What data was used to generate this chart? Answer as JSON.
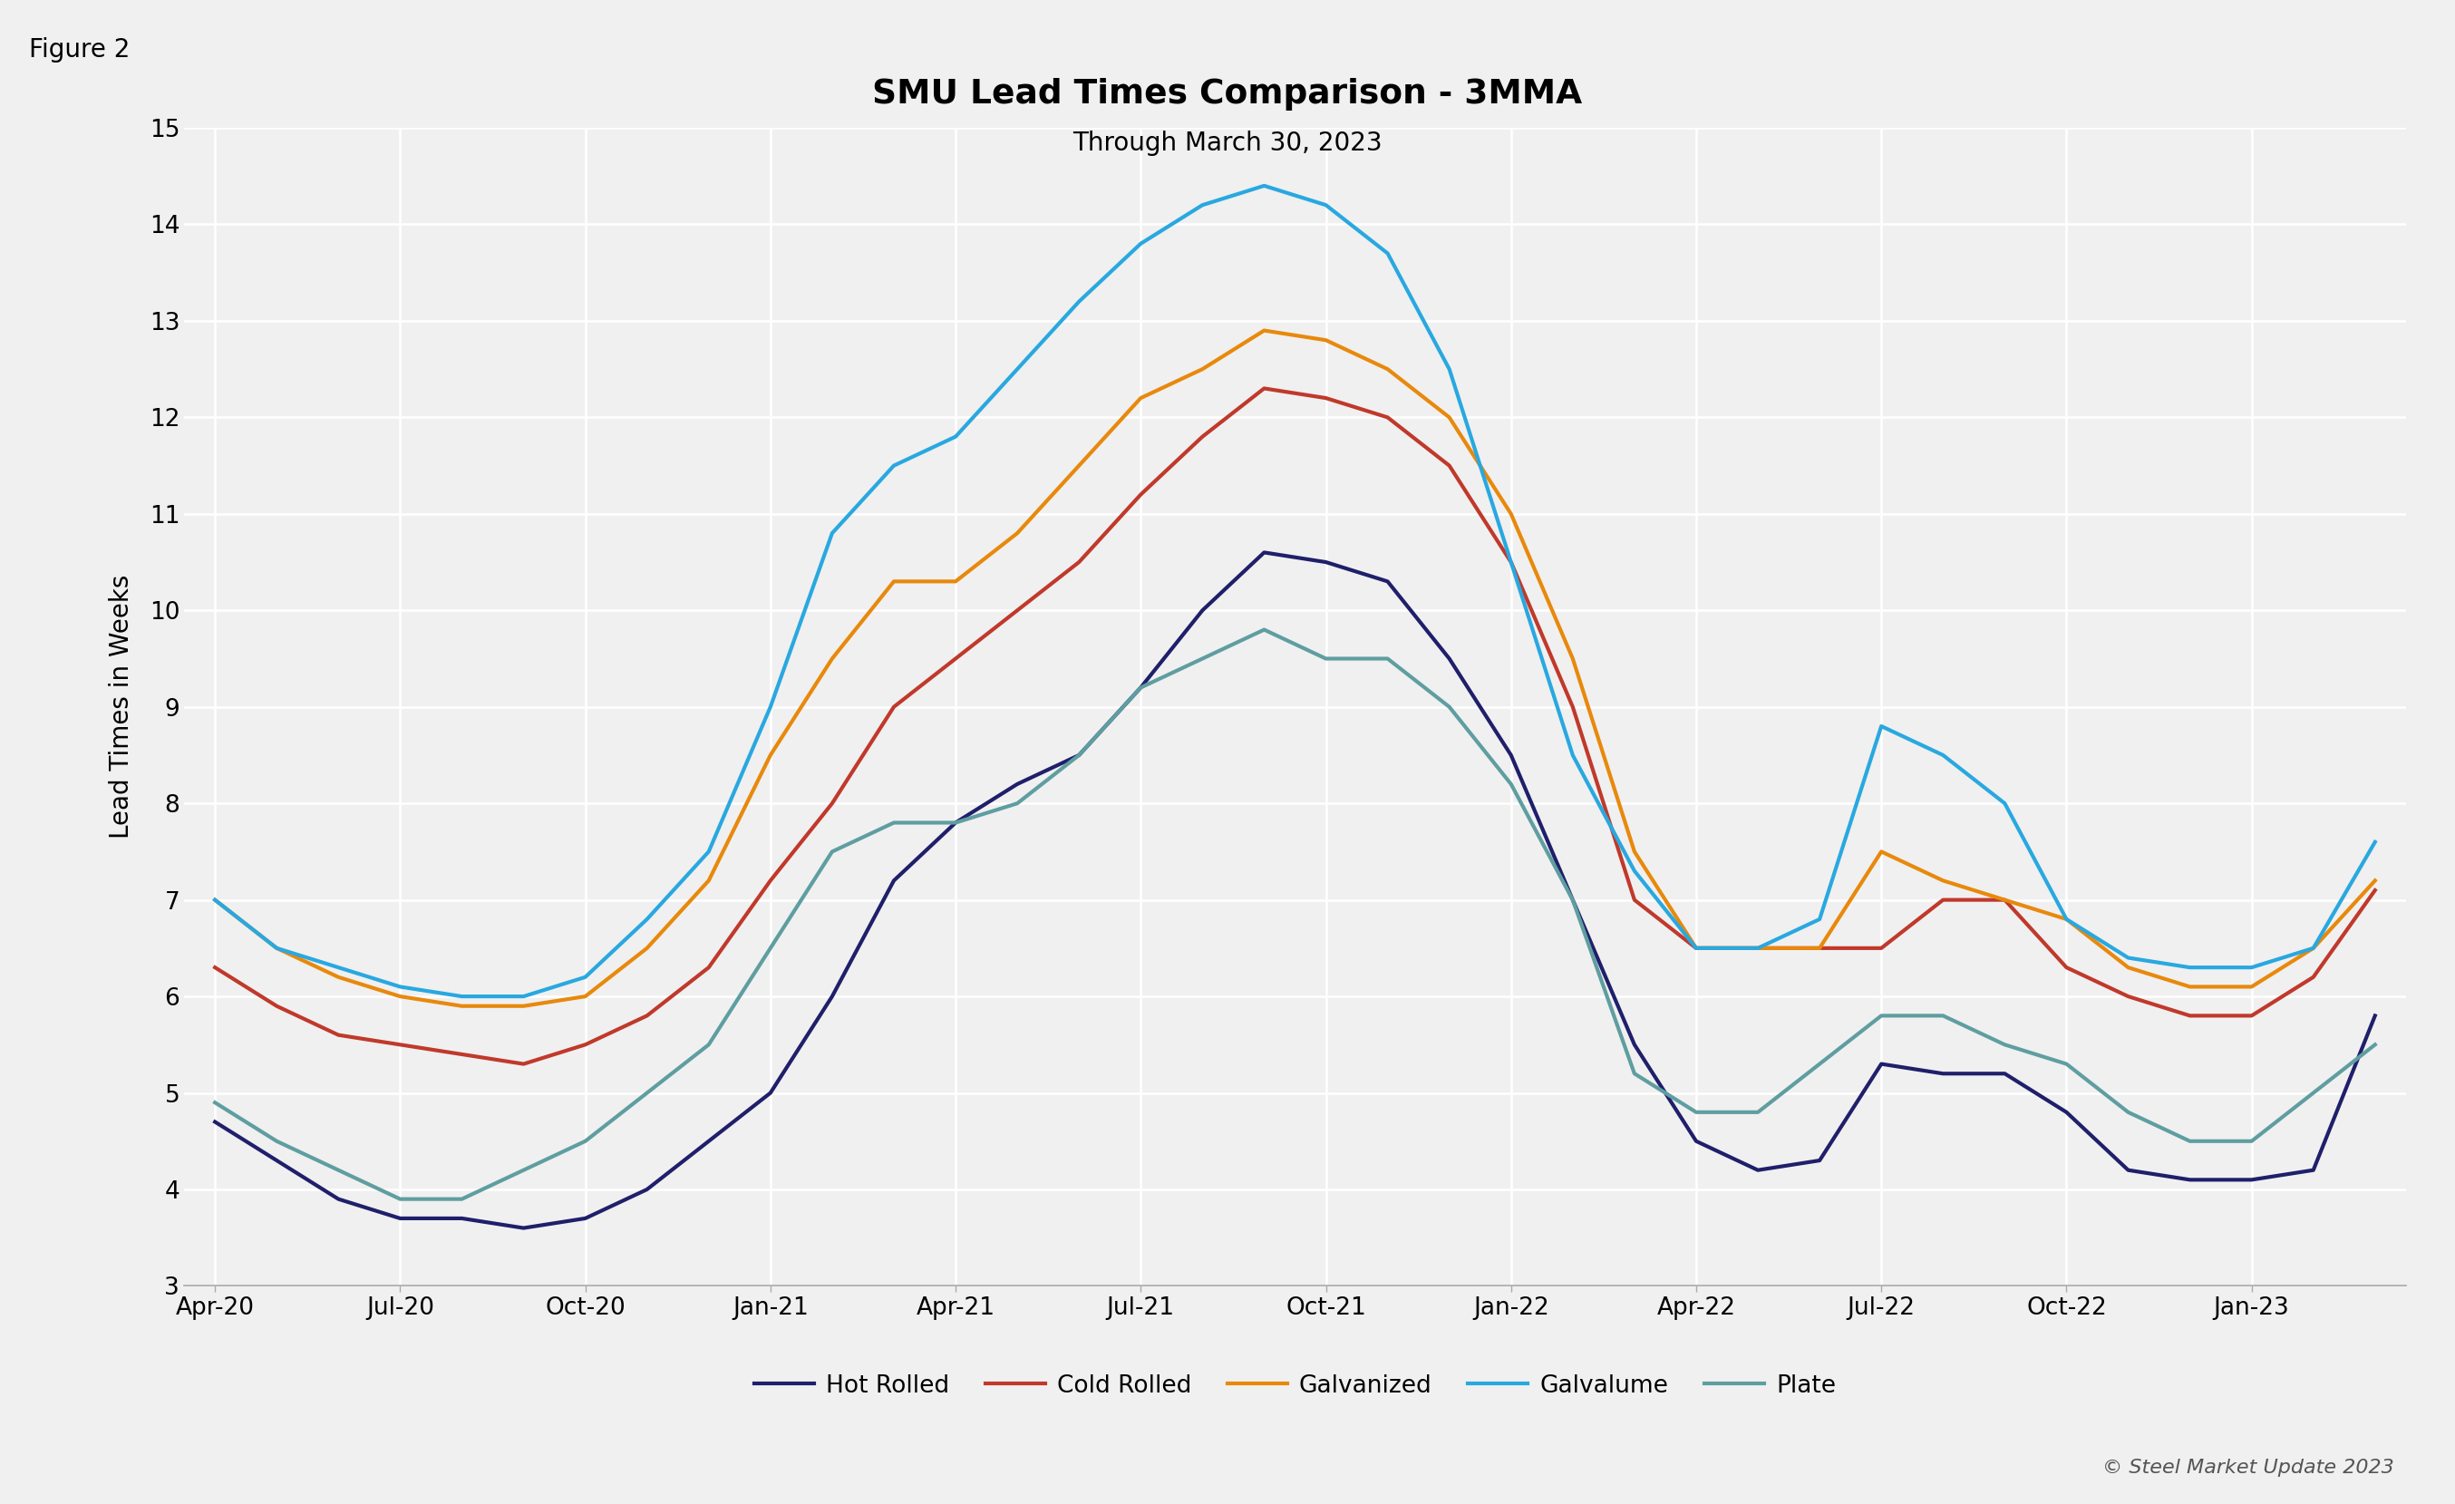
{
  "title": "SMU Lead Times Comparison - 3MMA",
  "subtitle": "Through March 30, 2023",
  "ylabel": "Lead Times in Weeks",
  "figure_label": "Figure 2",
  "copyright": "© Steel Market Update 2023",
  "bg_color": "#f0f0f0",
  "plot_bg_color": "#f0f0f0",
  "grid_color": "#ffffff",
  "ylim": [
    3,
    15
  ],
  "yticks": [
    3,
    4,
    5,
    6,
    7,
    8,
    9,
    10,
    11,
    12,
    13,
    14,
    15
  ],
  "tick_positions": [
    0,
    3,
    6,
    9,
    12,
    15,
    18,
    21,
    24,
    27,
    30,
    33
  ],
  "tick_labels": [
    "Apr-20",
    "Jul-20",
    "Oct-20",
    "Jan-21",
    "Apr-21",
    "Jul-21",
    "Oct-21",
    "Jan-22",
    "Apr-22",
    "Jul-22",
    "Oct-22",
    "Jan-23"
  ],
  "hot_rolled_color": "#1f1f6b",
  "cold_rolled_color": "#c0392b",
  "galvanized_color": "#e8890c",
  "galvalume_color": "#29a8e0",
  "plate_color": "#5f9ea0",
  "hot_rolled": [
    4.7,
    4.3,
    3.9,
    3.7,
    3.7,
    3.6,
    3.7,
    4.0,
    4.5,
    5.0,
    6.0,
    7.2,
    7.8,
    8.2,
    8.5,
    9.2,
    10.0,
    10.6,
    10.5,
    10.3,
    9.5,
    8.5,
    7.0,
    5.5,
    4.5,
    4.2,
    4.3,
    5.3,
    5.2,
    5.2,
    4.8,
    4.2,
    4.1,
    4.1,
    4.2,
    5.8
  ],
  "cold_rolled": [
    6.3,
    5.9,
    5.6,
    5.5,
    5.4,
    5.3,
    5.5,
    5.8,
    6.3,
    7.2,
    8.0,
    9.0,
    9.5,
    10.0,
    10.5,
    11.2,
    11.8,
    12.3,
    12.2,
    12.0,
    11.5,
    10.5,
    9.0,
    7.0,
    6.5,
    6.5,
    6.5,
    6.5,
    7.0,
    7.0,
    6.3,
    6.0,
    5.8,
    5.8,
    6.2,
    7.1
  ],
  "galvanized": [
    7.0,
    6.5,
    6.2,
    6.0,
    5.9,
    5.9,
    6.0,
    6.5,
    7.2,
    8.5,
    9.5,
    10.3,
    10.3,
    10.8,
    11.5,
    12.2,
    12.5,
    12.9,
    12.8,
    12.5,
    12.0,
    11.0,
    9.5,
    7.5,
    6.5,
    6.5,
    6.5,
    7.5,
    7.2,
    7.0,
    6.8,
    6.3,
    6.1,
    6.1,
    6.5,
    7.2
  ],
  "galvalume": [
    7.0,
    6.5,
    6.3,
    6.1,
    6.0,
    6.0,
    6.2,
    6.8,
    7.5,
    9.0,
    10.8,
    11.5,
    11.8,
    12.5,
    13.2,
    13.8,
    14.2,
    14.4,
    14.2,
    13.7,
    12.5,
    10.5,
    8.5,
    7.3,
    6.5,
    6.5,
    6.8,
    8.8,
    8.5,
    8.0,
    6.8,
    6.4,
    6.3,
    6.3,
    6.5,
    7.6
  ],
  "plate": [
    4.9,
    4.5,
    4.2,
    3.9,
    3.9,
    4.2,
    4.5,
    5.0,
    5.5,
    6.5,
    7.5,
    7.8,
    7.8,
    8.0,
    8.5,
    9.2,
    9.5,
    9.8,
    9.5,
    9.5,
    9.0,
    8.2,
    7.0,
    5.2,
    4.8,
    4.8,
    5.3,
    5.8,
    5.8,
    5.5,
    5.3,
    4.8,
    4.5,
    4.5,
    5.0,
    5.5
  ]
}
